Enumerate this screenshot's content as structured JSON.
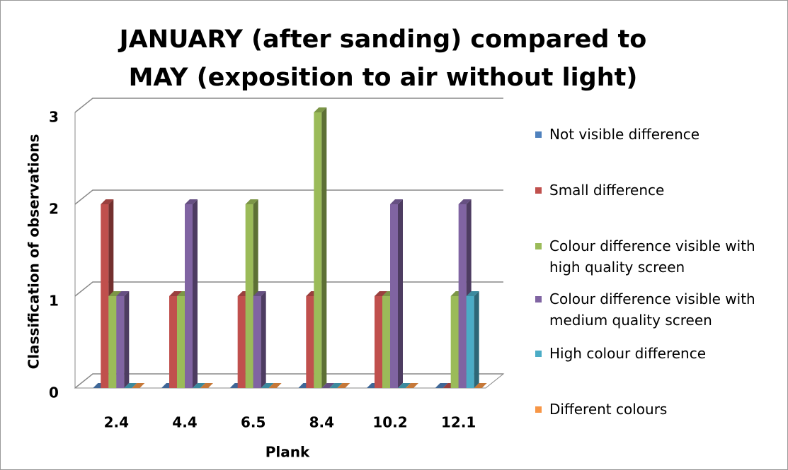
{
  "chart_data": {
    "type": "bar3d",
    "title": "JANUARY (after sanding) compared to MAY (exposition to air without light)",
    "x_label": "Plank",
    "y_label": "Classification of observations",
    "categories": [
      "2.4",
      "4.4",
      "6.5",
      "8.4",
      "10.2",
      "12.1"
    ],
    "ylim": [
      0,
      3
    ],
    "yticks": [
      0,
      1,
      2,
      3
    ],
    "grid": true,
    "legend": "right",
    "series": [
      {
        "name": "Not visible difference",
        "color": "#4f81bd",
        "values": [
          0,
          0,
          0,
          0,
          0,
          0
        ]
      },
      {
        "name": "Small difference",
        "color": "#c0504d",
        "values": [
          2,
          1,
          1,
          1,
          1,
          0
        ]
      },
      {
        "name": "Colour difference  visible with high quality screen",
        "color": "#9bbb59",
        "values": [
          1,
          1,
          2,
          3,
          1,
          1
        ]
      },
      {
        "name": "Colour difference  visible with medium quality screen",
        "color": "#8064a2",
        "values": [
          1,
          2,
          1,
          0,
          2,
          2
        ]
      },
      {
        "name": "High colour difference",
        "color": "#4bacc6",
        "values": [
          0,
          0,
          0,
          0,
          0,
          1
        ]
      },
      {
        "name": "Different colours",
        "color": "#f79646",
        "values": [
          0,
          0,
          0,
          0,
          0,
          0
        ]
      }
    ]
  }
}
